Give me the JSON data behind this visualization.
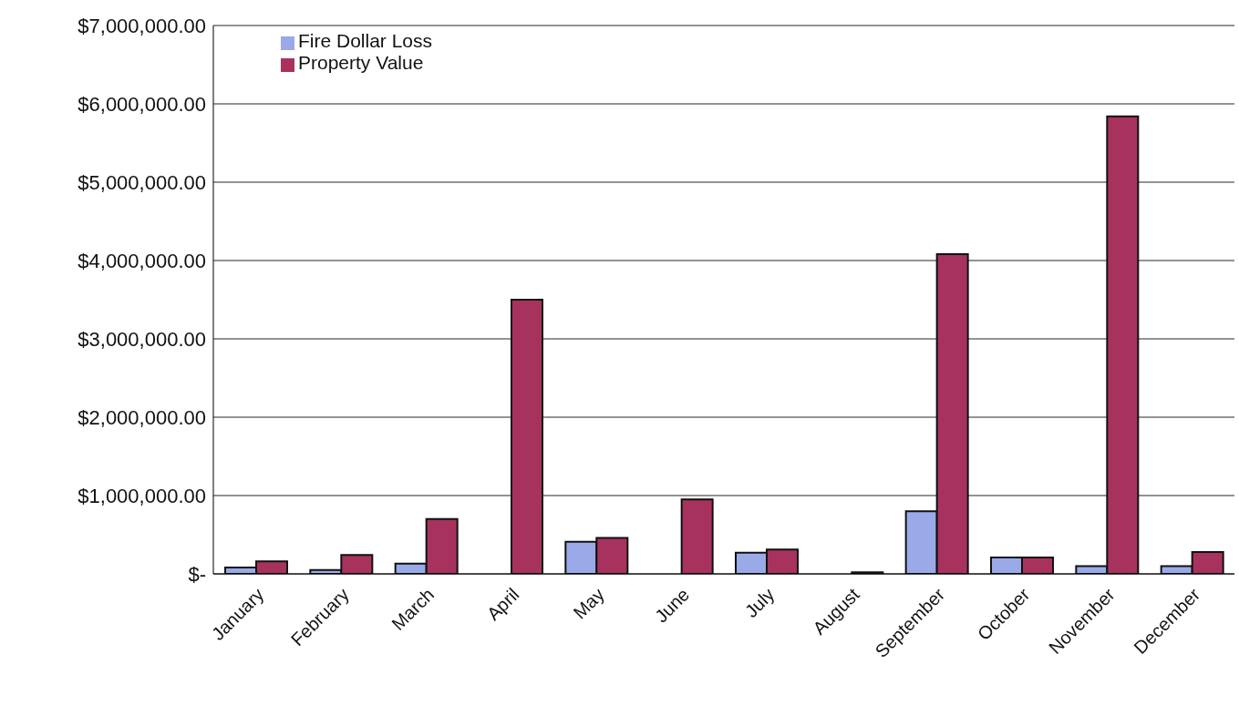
{
  "chart_data": {
    "type": "bar",
    "categories": [
      "January",
      "February",
      "March",
      "April",
      "May",
      "June",
      "July",
      "August",
      "September",
      "October",
      "November",
      "December"
    ],
    "series": [
      {
        "name": "Fire Dollar Loss",
        "color": "#9aaae8",
        "values": [
          80000,
          50000,
          130000,
          null,
          410000,
          null,
          270000,
          null,
          800000,
          210000,
          100000,
          100000
        ]
      },
      {
        "name": "Property Value",
        "color": "#a8325e",
        "values": [
          160000,
          240000,
          700000,
          3500000,
          460000,
          950000,
          310000,
          20000,
          4080000,
          210000,
          5840000,
          280000
        ]
      }
    ],
    "ylim": [
      0,
      7000000
    ],
    "yticks": [
      {
        "value": 0,
        "label": "$-"
      },
      {
        "value": 1000000,
        "label": "$1,000,000.00"
      },
      {
        "value": 2000000,
        "label": "$2,000,000.00"
      },
      {
        "value": 3000000,
        "label": "$3,000,000.00"
      },
      {
        "value": 4000000,
        "label": "$4,000,000.00"
      },
      {
        "value": 5000000,
        "label": "$5,000,000.00"
      },
      {
        "value": 6000000,
        "label": "$6,000,000.00"
      },
      {
        "value": 7000000,
        "label": "$7,000,000.00"
      }
    ],
    "grid": "y",
    "legend": "top left"
  }
}
